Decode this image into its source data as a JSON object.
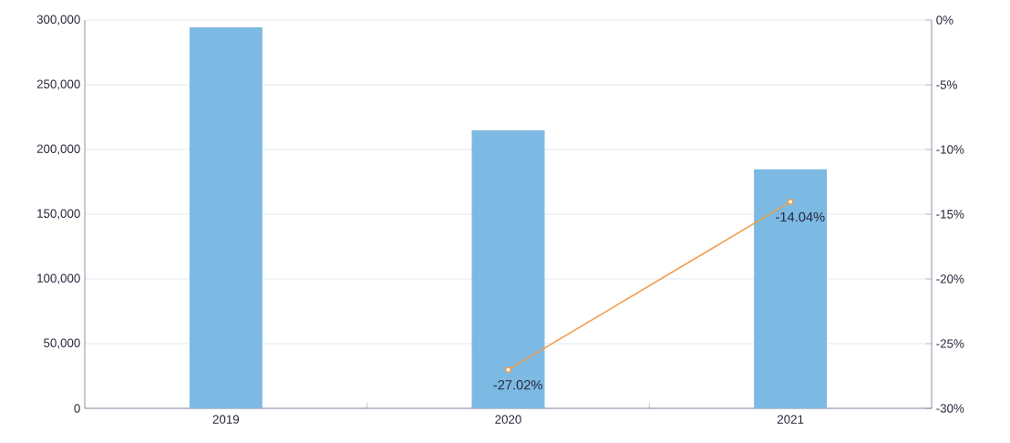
{
  "chart_data": {
    "type": "bar",
    "categories": [
      "2019",
      "2020",
      "2021"
    ],
    "series": [
      {
        "color": "#7cb9e3",
        "values": [
          294400,
          214800,
          184700
        ]
      },
      {
        "type": "line",
        "axis": "y2",
        "color": "#f0a050",
        "marker": "circle",
        "values": [
          null,
          -27.02,
          -14.04
        ],
        "value_labels": [
          null,
          "-27.02%",
          "-14.04%"
        ]
      }
    ],
    "ylim": [
      0,
      300000
    ],
    "yticks": [
      {
        "value": 0,
        "label": "0"
      },
      {
        "value": 50000,
        "label": "50,000"
      },
      {
        "value": 100000,
        "label": "100,000"
      },
      {
        "value": 150000,
        "label": "150,000"
      },
      {
        "value": 200000,
        "label": "200,000"
      },
      {
        "value": 250000,
        "label": "250,000"
      },
      {
        "value": 300000,
        "label": "300,000"
      }
    ],
    "y2lim": [
      -30,
      0
    ],
    "y2ticks": [
      {
        "value": -30,
        "label": "-30%"
      },
      {
        "value": -25,
        "label": "-25%"
      },
      {
        "value": -20,
        "label": "-20%"
      },
      {
        "value": -15,
        "label": "-15%"
      },
      {
        "value": -10,
        "label": "-10%"
      },
      {
        "value": -5,
        "label": "-5%"
      },
      {
        "value": 0,
        "label": "0%"
      }
    ],
    "grid": "y"
  }
}
